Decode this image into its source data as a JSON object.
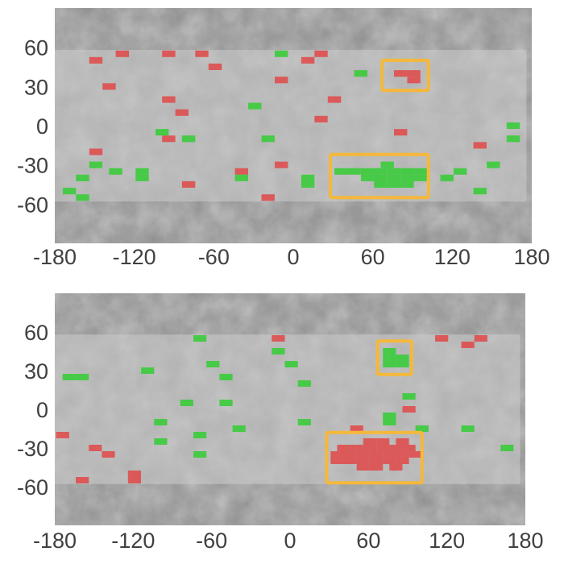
{
  "colors": {
    "positive": "#33cc33",
    "negative": "#e04848",
    "highlight": "#f5b83a",
    "map_grey": "#8e8e8e",
    "map_light": "#c9c9c9"
  },
  "panels": [
    {
      "name": "top-map-panel",
      "x_ticks": [
        "-180",
        "-120",
        "-60",
        "0",
        "60",
        "120",
        "180"
      ],
      "y_ticks": [
        "60",
        "30",
        "0",
        "-30",
        "-60"
      ],
      "boxes": [
        {
          "lon": [
            67,
            102
          ],
          "lat": [
            27,
            50
          ]
        },
        {
          "lon": [
            28,
            102
          ],
          "lat": [
            -55,
            -22
          ]
        }
      ],
      "cells": [
        {
          "lon": -149,
          "lat": 50,
          "c": "neg"
        },
        {
          "lon": -129,
          "lat": 55,
          "c": "neg"
        },
        {
          "lon": -94,
          "lat": 55,
          "c": "neg"
        },
        {
          "lon": -69,
          "lat": 55,
          "c": "neg"
        },
        {
          "lon": -59,
          "lat": 45,
          "c": "neg"
        },
        {
          "lon": -139,
          "lat": 30,
          "c": "neg"
        },
        {
          "lon": -94,
          "lat": 20,
          "c": "neg"
        },
        {
          "lon": -84,
          "lat": 10,
          "c": "neg"
        },
        {
          "lon": -9,
          "lat": 35,
          "c": "neg"
        },
        {
          "lon": 11,
          "lat": 50,
          "c": "neg"
        },
        {
          "lon": 21,
          "lat": 55,
          "c": "neg"
        },
        {
          "lon": 31,
          "lat": 20,
          "c": "neg"
        },
        {
          "lon": 21,
          "lat": 5,
          "c": "neg"
        },
        {
          "lon": 81,
          "lat": 40,
          "c": "neg"
        },
        {
          "lon": 91,
          "lat": 40,
          "c": "neg"
        },
        {
          "lon": 91,
          "lat": 35,
          "c": "neg"
        },
        {
          "lon": 81,
          "lat": -5,
          "c": "neg"
        },
        {
          "lon": 141,
          "lat": -15,
          "c": "neg"
        },
        {
          "lon": -149,
          "lat": -20,
          "c": "neg"
        },
        {
          "lon": -94,
          "lat": -10,
          "c": "neg"
        },
        {
          "lon": -79,
          "lat": -45,
          "c": "neg"
        },
        {
          "lon": -39,
          "lat": -35,
          "c": "neg"
        },
        {
          "lon": -19,
          "lat": -55,
          "c": "neg"
        },
        {
          "lon": -9,
          "lat": -30,
          "c": "neg"
        },
        {
          "lon": -9,
          "lat": 55,
          "c": "pos"
        },
        {
          "lon": 51,
          "lat": 40,
          "c": "pos"
        },
        {
          "lon": -29,
          "lat": 15,
          "c": "pos"
        },
        {
          "lon": -19,
          "lat": -10,
          "c": "pos"
        },
        {
          "lon": -99,
          "lat": -5,
          "c": "pos"
        },
        {
          "lon": -79,
          "lat": -10,
          "c": "pos"
        },
        {
          "lon": 166,
          "lat": 0,
          "c": "pos"
        },
        {
          "lon": 166,
          "lat": -10,
          "c": "pos"
        },
        {
          "lon": 151,
          "lat": -30,
          "c": "pos"
        },
        {
          "lon": 141,
          "lat": -50,
          "c": "pos"
        },
        {
          "lon": 126,
          "lat": -35,
          "c": "pos"
        },
        {
          "lon": 116,
          "lat": -40,
          "c": "pos"
        },
        {
          "lon": 11,
          "lat": -40,
          "c": "pos"
        },
        {
          "lon": 11,
          "lat": -45,
          "c": "pos"
        },
        {
          "lon": -39,
          "lat": -40,
          "c": "pos"
        },
        {
          "lon": -114,
          "lat": -35,
          "c": "pos"
        },
        {
          "lon": -114,
          "lat": -40,
          "c": "pos"
        },
        {
          "lon": -134,
          "lat": -35,
          "c": "pos"
        },
        {
          "lon": -149,
          "lat": -30,
          "c": "pos"
        },
        {
          "lon": -159,
          "lat": -40,
          "c": "pos"
        },
        {
          "lon": -169,
          "lat": -50,
          "c": "pos"
        },
        {
          "lon": -159,
          "lat": -55,
          "c": "pos"
        },
        {
          "lon": 36,
          "lat": -35,
          "c": "pos"
        },
        {
          "lon": 46,
          "lat": -35,
          "c": "pos"
        },
        {
          "lon": 56,
          "lat": -35,
          "c": "pos"
        },
        {
          "lon": 66,
          "lat": -35,
          "c": "pos"
        },
        {
          "lon": 76,
          "lat": -35,
          "c": "pos"
        },
        {
          "lon": 86,
          "lat": -35,
          "c": "pos"
        },
        {
          "lon": 96,
          "lat": -35,
          "c": "pos"
        },
        {
          "lon": 56,
          "lat": -40,
          "c": "pos"
        },
        {
          "lon": 66,
          "lat": -40,
          "c": "pos"
        },
        {
          "lon": 76,
          "lat": -40,
          "c": "pos"
        },
        {
          "lon": 86,
          "lat": -40,
          "c": "pos"
        },
        {
          "lon": 96,
          "lat": -40,
          "c": "pos"
        },
        {
          "lon": 66,
          "lat": -45,
          "c": "pos"
        },
        {
          "lon": 76,
          "lat": -45,
          "c": "pos"
        },
        {
          "lon": 86,
          "lat": -45,
          "c": "pos"
        },
        {
          "lon": 71,
          "lat": -30,
          "c": "pos"
        }
      ]
    },
    {
      "name": "bottom-map-panel",
      "x_ticks": [
        "-180",
        "-120",
        "-60",
        "0",
        "60",
        "120",
        "180"
      ],
      "y_ticks": [
        "60",
        "30",
        "0",
        "-30",
        "-60"
      ],
      "boxes": [
        {
          "lon": [
            67,
            93
          ],
          "lat": [
            27,
            53
          ]
        },
        {
          "lon": [
            28,
            101
          ],
          "lat": [
            -57,
            -18
          ]
        }
      ],
      "cells": [
        {
          "lon": -69,
          "lat": 55,
          "c": "pos"
        },
        {
          "lon": -109,
          "lat": 30,
          "c": "pos"
        },
        {
          "lon": -169,
          "lat": 25,
          "c": "pos"
        },
        {
          "lon": -159,
          "lat": 25,
          "c": "pos"
        },
        {
          "lon": -59,
          "lat": 35,
          "c": "pos"
        },
        {
          "lon": -49,
          "lat": 25,
          "c": "pos"
        },
        {
          "lon": -79,
          "lat": 5,
          "c": "pos"
        },
        {
          "lon": -49,
          "lat": 5,
          "c": "pos"
        },
        {
          "lon": -99,
          "lat": -10,
          "c": "pos"
        },
        {
          "lon": -99,
          "lat": -25,
          "c": "pos"
        },
        {
          "lon": -69,
          "lat": -20,
          "c": "pos"
        },
        {
          "lon": -69,
          "lat": -35,
          "c": "pos"
        },
        {
          "lon": -39,
          "lat": -15,
          "c": "pos"
        },
        {
          "lon": -9,
          "lat": 45,
          "c": "pos"
        },
        {
          "lon": 1,
          "lat": 35,
          "c": "pos"
        },
        {
          "lon": 11,
          "lat": 20,
          "c": "pos"
        },
        {
          "lon": 11,
          "lat": -10,
          "c": "pos"
        },
        {
          "lon": 76,
          "lat": 45,
          "c": "pos"
        },
        {
          "lon": 76,
          "lat": 40,
          "c": "pos"
        },
        {
          "lon": 86,
          "lat": 40,
          "c": "pos"
        },
        {
          "lon": 86,
          "lat": 35,
          "c": "pos"
        },
        {
          "lon": 76,
          "lat": 35,
          "c": "pos"
        },
        {
          "lon": 91,
          "lat": 10,
          "c": "pos"
        },
        {
          "lon": 76,
          "lat": -5,
          "c": "pos"
        },
        {
          "lon": 76,
          "lat": -10,
          "c": "pos"
        },
        {
          "lon": 101,
          "lat": -15,
          "c": "pos"
        },
        {
          "lon": 136,
          "lat": -15,
          "c": "pos"
        },
        {
          "lon": 166,
          "lat": -30,
          "c": "pos"
        },
        {
          "lon": -9,
          "lat": 55,
          "c": "neg"
        },
        {
          "lon": 116,
          "lat": 55,
          "c": "neg"
        },
        {
          "lon": 136,
          "lat": 50,
          "c": "neg"
        },
        {
          "lon": 146,
          "lat": 55,
          "c": "neg"
        },
        {
          "lon": 91,
          "lat": 0,
          "c": "neg"
        },
        {
          "lon": -174,
          "lat": -20,
          "c": "neg"
        },
        {
          "lon": -149,
          "lat": -30,
          "c": "neg"
        },
        {
          "lon": -139,
          "lat": -35,
          "c": "neg"
        },
        {
          "lon": -159,
          "lat": -55,
          "c": "neg"
        },
        {
          "lon": -119,
          "lat": -50,
          "c": "neg"
        },
        {
          "lon": -119,
          "lat": -55,
          "c": "neg"
        },
        {
          "lon": 51,
          "lat": -15,
          "c": "neg"
        },
        {
          "lon": 61,
          "lat": -25,
          "c": "neg"
        },
        {
          "lon": 71,
          "lat": -25,
          "c": "neg"
        },
        {
          "lon": 86,
          "lat": -25,
          "c": "neg"
        },
        {
          "lon": 41,
          "lat": -30,
          "c": "neg"
        },
        {
          "lon": 51,
          "lat": -30,
          "c": "neg"
        },
        {
          "lon": 61,
          "lat": -30,
          "c": "neg"
        },
        {
          "lon": 71,
          "lat": -30,
          "c": "neg"
        },
        {
          "lon": 81,
          "lat": -30,
          "c": "neg"
        },
        {
          "lon": 91,
          "lat": -30,
          "c": "neg"
        },
        {
          "lon": 36,
          "lat": -35,
          "c": "neg"
        },
        {
          "lon": 46,
          "lat": -35,
          "c": "neg"
        },
        {
          "lon": 56,
          "lat": -35,
          "c": "neg"
        },
        {
          "lon": 66,
          "lat": -35,
          "c": "neg"
        },
        {
          "lon": 76,
          "lat": -35,
          "c": "neg"
        },
        {
          "lon": 86,
          "lat": -35,
          "c": "neg"
        },
        {
          "lon": 96,
          "lat": -35,
          "c": "neg"
        },
        {
          "lon": 36,
          "lat": -40,
          "c": "neg"
        },
        {
          "lon": 46,
          "lat": -40,
          "c": "neg"
        },
        {
          "lon": 56,
          "lat": -40,
          "c": "neg"
        },
        {
          "lon": 66,
          "lat": -40,
          "c": "neg"
        },
        {
          "lon": 76,
          "lat": -40,
          "c": "neg"
        },
        {
          "lon": 86,
          "lat": -40,
          "c": "neg"
        },
        {
          "lon": 56,
          "lat": -45,
          "c": "neg"
        },
        {
          "lon": 66,
          "lat": -45,
          "c": "neg"
        },
        {
          "lon": 81,
          "lat": -45,
          "c": "neg"
        }
      ]
    }
  ]
}
